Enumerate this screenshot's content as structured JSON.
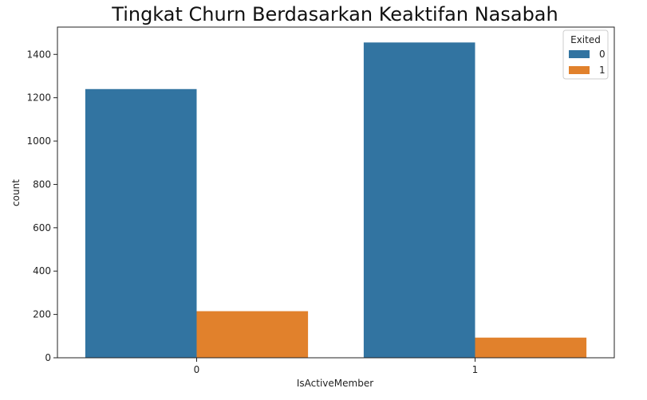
{
  "chart_data": {
    "type": "bar",
    "title": "Tingkat Churn Berdasarkan Keaktifan Nasabah",
    "xlabel": "IsActiveMember",
    "ylabel": "count",
    "categories": [
      "0",
      "1"
    ],
    "series": [
      {
        "name": "0",
        "color": "#3274a1",
        "values": [
          1240,
          1455
        ]
      },
      {
        "name": "1",
        "color": "#e1812c",
        "values": [
          215,
          93
        ]
      }
    ],
    "ylim": [
      0,
      1526
    ],
    "yticks": [
      0,
      200,
      400,
      600,
      800,
      1000,
      1200,
      1400
    ],
    "legend": {
      "title": "Exited",
      "placement": "top-right"
    },
    "grid": false
  }
}
